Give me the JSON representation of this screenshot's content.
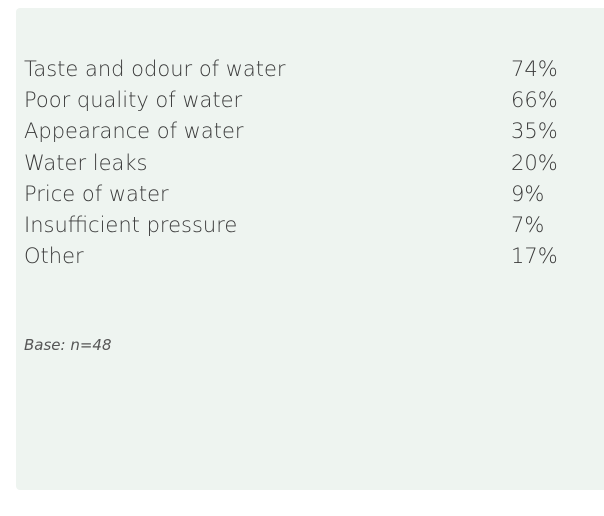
{
  "table": {
    "rows": [
      [
        "Taste and odour of water",
        "74%"
      ],
      [
        "Poor quality of water",
        "66%"
      ],
      [
        "Appearance of water",
        "35%"
      ],
      [
        "Water leaks",
        "20%"
      ],
      [
        "Price of water",
        "9%"
      ],
      [
        "Insufficient pressure",
        "7%"
      ],
      [
        "Other",
        "17%"
      ]
    ]
  },
  "footnote": "Base: n=48"
}
